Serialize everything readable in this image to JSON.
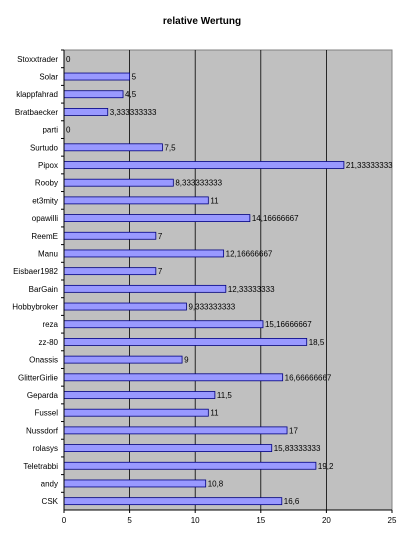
{
  "chart_data": {
    "type": "bar",
    "orientation": "horizontal",
    "title": "relative Wertung",
    "xlabel": "",
    "ylabel": "",
    "xlim": [
      0,
      25
    ],
    "x_ticks": [
      "0",
      "5",
      "10",
      "15",
      "20",
      "25"
    ],
    "grid": "vertical",
    "legend": "none",
    "colors": {
      "bar_fill": "#9999ff",
      "bar_stroke": "#000080",
      "plot_bg": "#c0c0c0",
      "grid": "#000000"
    },
    "categories": [
      "Stoxxtrader",
      "Solar",
      "klappfahrad",
      "Bratbaecker",
      "parti",
      "Surtudo",
      "Pipox",
      "Rooby",
      "et3mity",
      "opawilli",
      "ReemE",
      "Manu",
      "Eisbaer1982",
      "BarGain",
      "Hobbybroker",
      "reza",
      "zz-80",
      "Onassis",
      "GlitterGirlie",
      "Geparda",
      "Fussel",
      "Nussdorf",
      "rolasys",
      "Teletrabbi",
      "andy",
      "CSK"
    ],
    "values": [
      0,
      5,
      4.5,
      3.333333333,
      0,
      7.5,
      21.33333333,
      8.333333333,
      11,
      14.16666667,
      7,
      12.16666667,
      7,
      12.33333333,
      9.333333333,
      15.16666667,
      18.5,
      9,
      16.66666667,
      11.5,
      11,
      17,
      15.83333333,
      19.2,
      10.8,
      16.6
    ],
    "data_labels": [
      "0",
      "5",
      "4,5",
      "3,333333333",
      "0",
      "7,5",
      "21,33333333",
      "8,333333333",
      "11",
      "14,16666667",
      "7",
      "12,16666667",
      "7",
      "12,33333333",
      "9,333333333",
      "15,16666667",
      "18,5",
      "9",
      "16,66666667",
      "11,5",
      "11",
      "17",
      "15,83333333",
      "19,2",
      "10,8",
      "16,6"
    ]
  }
}
